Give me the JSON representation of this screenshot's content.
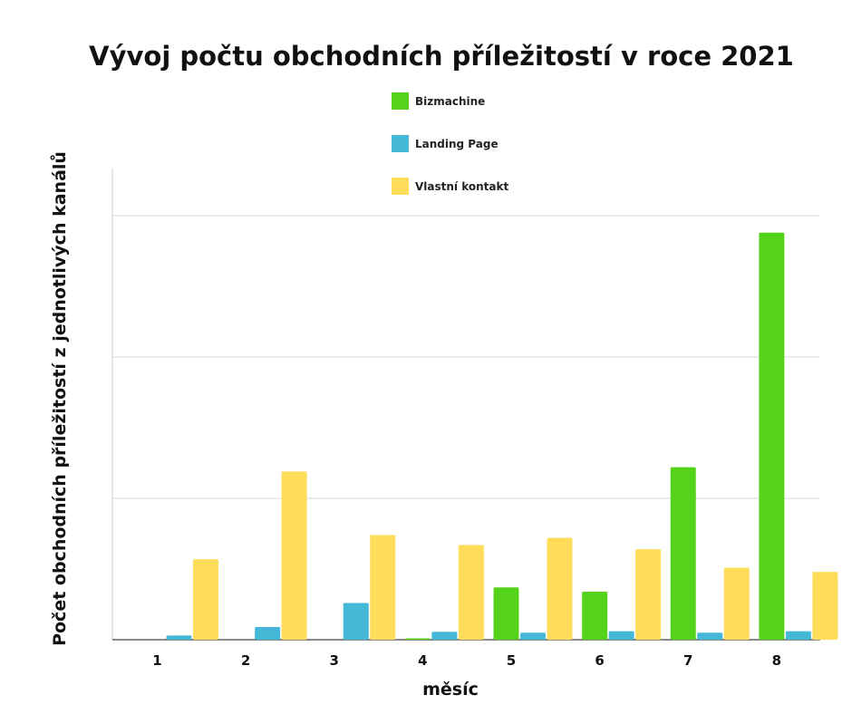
{
  "chart_data": {
    "type": "bar",
    "title": "Vývoj počtu obchodních příležitostí v roce 2021",
    "xlabel": "měsíc",
    "ylabel": "Počet obchodních příležitostí z jednotlivých kanálů",
    "categories": [
      "1",
      "2",
      "3",
      "4",
      "5",
      "6",
      "7",
      "8"
    ],
    "series": [
      {
        "name": "Bizmachine",
        "color": "#55d31a",
        "values": [
          0,
          0,
          0,
          0.05,
          1.85,
          1.7,
          6.1,
          14.4
        ]
      },
      {
        "name": "Landing Page",
        "color": "#45b8d8",
        "values": [
          0.15,
          0.45,
          1.3,
          0.28,
          0.25,
          0.3,
          0.25,
          0.3
        ]
      },
      {
        "name": "Vlastní kontakt",
        "color": "#ffdd5a",
        "values": [
          2.85,
          5.95,
          3.7,
          3.35,
          3.6,
          3.2,
          2.55,
          2.4
        ]
      }
    ],
    "ylim": [
      0,
      15
    ],
    "gridlines": [
      5,
      10,
      15
    ],
    "grid": true,
    "legend_position": "top-center"
  }
}
